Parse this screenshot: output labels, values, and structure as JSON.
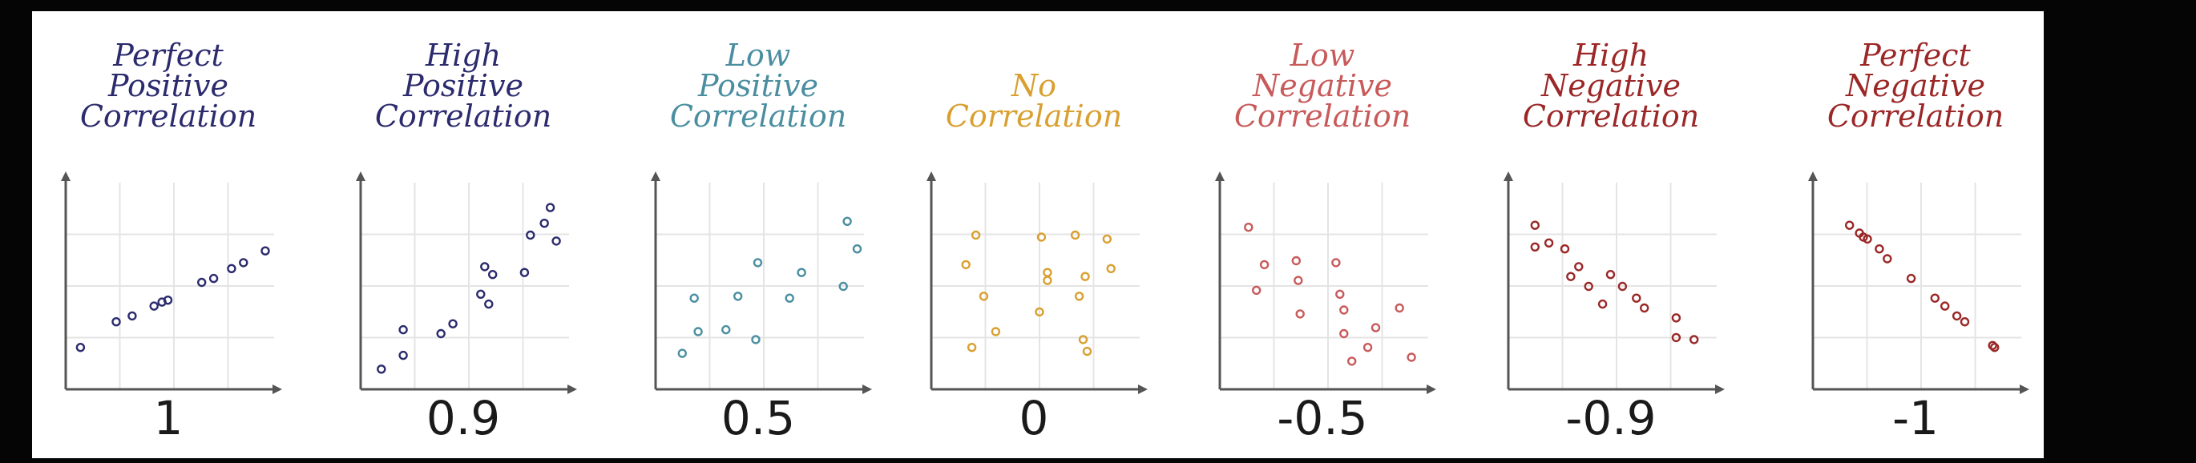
{
  "chart_data": [
    {
      "type": "scatter",
      "title": [
        "Perfect",
        "Positive",
        "Correlation"
      ],
      "value_label": "1",
      "color": "#2b2b6e",
      "points": [
        [
          0.05,
          0.18
        ],
        [
          0.23,
          0.31
        ],
        [
          0.31,
          0.34
        ],
        [
          0.42,
          0.39
        ],
        [
          0.46,
          0.41
        ],
        [
          0.49,
          0.42
        ],
        [
          0.66,
          0.51
        ],
        [
          0.72,
          0.53
        ],
        [
          0.81,
          0.58
        ],
        [
          0.87,
          0.61
        ],
        [
          0.98,
          0.67
        ]
      ]
    },
    {
      "type": "scatter",
      "title": [
        "High",
        "Positive",
        "Correlation"
      ],
      "value_label": "0.9",
      "color": "#2b2b6e",
      "points": [
        [
          0.08,
          0.07
        ],
        [
          0.19,
          0.14
        ],
        [
          0.19,
          0.27
        ],
        [
          0.38,
          0.25
        ],
        [
          0.44,
          0.3
        ],
        [
          0.58,
          0.45
        ],
        [
          0.62,
          0.4
        ],
        [
          0.6,
          0.59
        ],
        [
          0.64,
          0.55
        ],
        [
          0.8,
          0.56
        ],
        [
          0.83,
          0.75
        ],
        [
          0.9,
          0.81
        ],
        [
          0.93,
          0.89
        ],
        [
          0.96,
          0.72
        ]
      ]
    },
    {
      "type": "scatter",
      "title": [
        "Low",
        "Positive",
        "Correlation"
      ],
      "value_label": "0.5",
      "color": "#4a8ea0",
      "points": [
        [
          0.11,
          0.15
        ],
        [
          0.17,
          0.43
        ],
        [
          0.19,
          0.26
        ],
        [
          0.33,
          0.27
        ],
        [
          0.39,
          0.44
        ],
        [
          0.49,
          0.61
        ],
        [
          0.48,
          0.22
        ],
        [
          0.65,
          0.43
        ],
        [
          0.71,
          0.56
        ],
        [
          0.92,
          0.49
        ],
        [
          0.94,
          0.82
        ],
        [
          0.99,
          0.68
        ]
      ]
    },
    {
      "type": "scatter",
      "title": [
        "No",
        "Correlation"
      ],
      "value_label": "0",
      "color": "#d9a030",
      "points": [
        [
          0.15,
          0.6
        ],
        [
          0.18,
          0.18
        ],
        [
          0.2,
          0.75
        ],
        [
          0.24,
          0.44
        ],
        [
          0.3,
          0.26
        ],
        [
          0.52,
          0.36
        ],
        [
          0.53,
          0.74
        ],
        [
          0.56,
          0.56
        ],
        [
          0.56,
          0.52
        ],
        [
          0.7,
          0.75
        ],
        [
          0.72,
          0.44
        ],
        [
          0.74,
          0.22
        ],
        [
          0.76,
          0.16
        ],
        [
          0.75,
          0.54
        ],
        [
          0.86,
          0.73
        ],
        [
          0.88,
          0.58
        ]
      ]
    },
    {
      "type": "scatter",
      "title": [
        "Low",
        "Negative",
        "Correlation"
      ],
      "value_label": "-0.5",
      "color": "#c85a5a",
      "points": [
        [
          0.12,
          0.79
        ],
        [
          0.16,
          0.47
        ],
        [
          0.2,
          0.6
        ],
        [
          0.36,
          0.62
        ],
        [
          0.37,
          0.52
        ],
        [
          0.38,
          0.35
        ],
        [
          0.56,
          0.61
        ],
        [
          0.58,
          0.45
        ],
        [
          0.6,
          0.37
        ],
        [
          0.6,
          0.25
        ],
        [
          0.64,
          0.11
        ],
        [
          0.72,
          0.18
        ],
        [
          0.76,
          0.28
        ],
        [
          0.88,
          0.38
        ],
        [
          0.94,
          0.13
        ]
      ]
    },
    {
      "type": "scatter",
      "title": [
        "High",
        "Negative",
        "Correlation"
      ],
      "value_label": "-0.9",
      "color": "#9b2727",
      "points": [
        [
          0.11,
          0.8
        ],
        [
          0.11,
          0.69
        ],
        [
          0.18,
          0.71
        ],
        [
          0.26,
          0.68
        ],
        [
          0.29,
          0.54
        ],
        [
          0.33,
          0.59
        ],
        [
          0.38,
          0.49
        ],
        [
          0.45,
          0.4
        ],
        [
          0.49,
          0.55
        ],
        [
          0.55,
          0.49
        ],
        [
          0.62,
          0.43
        ],
        [
          0.66,
          0.38
        ],
        [
          0.82,
          0.33
        ],
        [
          0.82,
          0.23
        ],
        [
          0.91,
          0.22
        ]
      ]
    },
    {
      "type": "scatter",
      "title": [
        "Perfect",
        "Negative",
        "Correlation"
      ],
      "value_label": "-1",
      "color": "#9b2727",
      "points": [
        [
          0.16,
          0.8
        ],
        [
          0.21,
          0.76
        ],
        [
          0.23,
          0.74
        ],
        [
          0.25,
          0.73
        ],
        [
          0.31,
          0.68
        ],
        [
          0.35,
          0.63
        ],
        [
          0.47,
          0.53
        ],
        [
          0.59,
          0.43
        ],
        [
          0.64,
          0.39
        ],
        [
          0.7,
          0.34
        ],
        [
          0.74,
          0.31
        ],
        [
          0.88,
          0.19
        ],
        [
          0.89,
          0.18
        ]
      ]
    }
  ]
}
